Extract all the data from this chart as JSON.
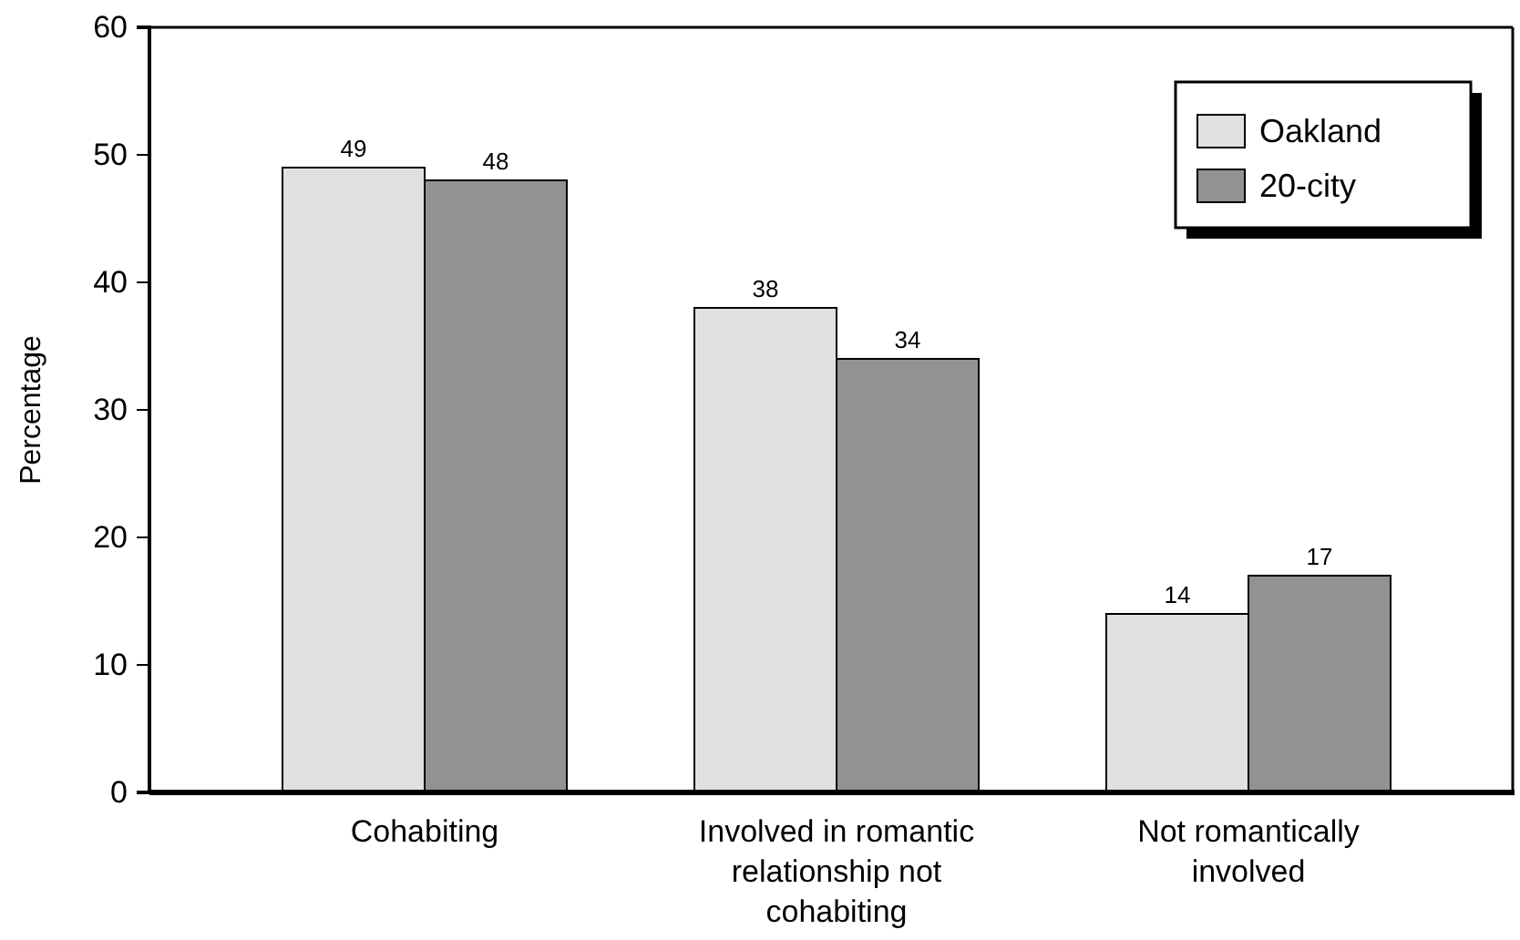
{
  "chart_data": {
    "type": "bar",
    "ylabel": "Percentage",
    "categories": [
      "Cohabiting",
      "Involved in romantic relationship not cohabiting",
      "Not romantically involved"
    ],
    "series": [
      {
        "name": "Oakland",
        "color": "#e0e0e0",
        "values": [
          49,
          38,
          14
        ]
      },
      {
        "name": "20-city",
        "color": "#929292",
        "values": [
          48,
          34,
          17
        ]
      }
    ],
    "ylim": [
      0,
      60
    ],
    "yticks": [
      0,
      10,
      20,
      30,
      40,
      50,
      60
    ],
    "grid": false,
    "legend": "top right",
    "data_labels": true
  }
}
